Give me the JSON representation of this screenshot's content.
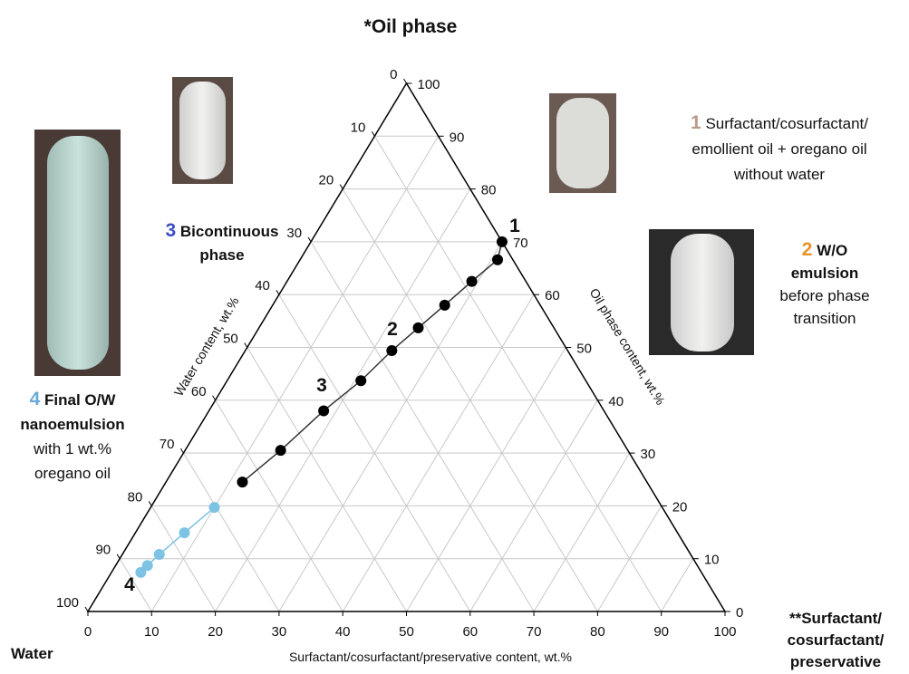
{
  "chart_data": {
    "type": "ternary",
    "title": "*Oil phase",
    "corner_left": "Water",
    "corner_right": [
      "**Surfactant/",
      "cosurfactant/",
      "preservative"
    ],
    "axes": {
      "bottom": {
        "title": "Surfactant/cosurfactant/preservative content, wt.%",
        "ticks": [
          0,
          10,
          20,
          30,
          40,
          50,
          60,
          70,
          80,
          90,
          100
        ]
      },
      "left": {
        "title": "Water content, wt.%",
        "ticks": [
          0,
          10,
          20,
          30,
          40,
          50,
          60,
          70,
          80,
          90,
          100
        ]
      },
      "right": {
        "title": "Oil phase content, wt.%",
        "ticks": [
          0,
          10,
          20,
          30,
          40,
          50,
          60,
          70,
          80,
          90,
          100
        ]
      }
    },
    "grid": true,
    "series": [
      {
        "color": "#000000",
        "line_color": "#333333",
        "surfactant": [
          30,
          31,
          29,
          27,
          25,
          23,
          21,
          18,
          15,
          12
        ],
        "oil": [
          70,
          66.6,
          62.5,
          58,
          53.7,
          49.4,
          43.7,
          38,
          30.5,
          24.5
        ]
      },
      {
        "color": "#7ec3e3",
        "line_color": "#7ec3e3",
        "surfactant": [
          10,
          7.7,
          5.8,
          5,
          4.6
        ],
        "oil": [
          19.7,
          14.9,
          10.8,
          8.7,
          7.4
        ]
      }
    ],
    "annotations": [
      {
        "number": "1",
        "color": "#b89a8a",
        "bold_lines": 0,
        "lines": [
          "Surfactant/cosurfactant/",
          "emollient oil + oregano oil",
          "without water"
        ]
      },
      {
        "number": "2",
        "color": "#e8932a",
        "bold_lines": 2,
        "lines": [
          "W/O",
          "emulsion",
          "before phase",
          "transition"
        ]
      },
      {
        "number": "3",
        "color": "#3b4fc4",
        "bold_lines": 2,
        "lines": [
          "Bicontinuous",
          "phase"
        ]
      },
      {
        "number": "4",
        "color": "#6aaad8",
        "bold_lines": 2,
        "lines": [
          "Final O/W",
          "nanoemulsion",
          "with 1 wt.%",
          "oregano oil"
        ]
      }
    ]
  }
}
